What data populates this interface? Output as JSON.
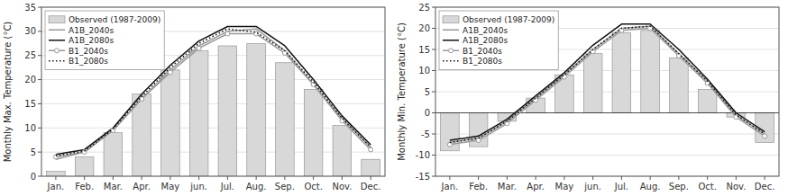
{
  "chart_data": [
    {
      "type": "bar",
      "y_label": "Monthly Max. Temperature (°C)",
      "categories": [
        "Jan.",
        "Feb.",
        "Mar.",
        "Apr.",
        "May",
        "jun.",
        "Jul.",
        "Aug.",
        "Sep.",
        "Oct.",
        "Nov.",
        "Dec."
      ],
      "series": [
        {
          "name": "Observed (1987-2009)",
          "type": "bar",
          "color": "#d8d8d8",
          "values": [
            1,
            4,
            9,
            17,
            22,
            26,
            27,
            27.5,
            23.5,
            18,
            10.5,
            3.5
          ]
        },
        {
          "name": "A1B_2040s",
          "type": "line",
          "color": "#999999",
          "line_style": "solid",
          "values": [
            3.5,
            5,
            9.5,
            16,
            22,
            27,
            30,
            30.5,
            26,
            19,
            12,
            6
          ]
        },
        {
          "name": "A1B_2080s",
          "type": "line",
          "color": "#111111",
          "line_style": "solid",
          "values": [
            4.5,
            5.5,
            10,
            17,
            23,
            28,
            31,
            31,
            27,
            20,
            12.5,
            6.5
          ]
        },
        {
          "name": "B1_2040s",
          "type": "line",
          "color": "#999999",
          "line_style": "solid",
          "marker": "circle",
          "values": [
            4.0,
            5.0,
            9.5,
            16,
            21.5,
            26.5,
            29.5,
            29.5,
            25.5,
            19,
            11.5,
            5.5
          ]
        },
        {
          "name": "B1_2080s",
          "type": "line",
          "color": "#111111",
          "line_style": "dotted",
          "values": [
            4.2,
            5.2,
            9.8,
            16.5,
            22.5,
            27.5,
            30.5,
            29.8,
            26,
            19.5,
            12,
            6
          ]
        }
      ],
      "ylim": [
        0,
        35
      ],
      "yticks": [
        0,
        5,
        10,
        15,
        20,
        25,
        30,
        35
      ],
      "grid": true,
      "legend": "upper left"
    },
    {
      "type": "bar",
      "y_label": "Monthly Min. Temperature (°C)",
      "categories": [
        "Jan.",
        "Feb.",
        "Mar.",
        "Apr.",
        "May",
        "jun.",
        "Jul.",
        "Aug.",
        "Sep.",
        "Oct.",
        "Nov.",
        "Dec."
      ],
      "series": [
        {
          "name": "Observed (1987-2009)",
          "type": "bar",
          "color": "#d8d8d8",
          "values": [
            -9,
            -8,
            -2,
            3.5,
            9,
            14,
            19,
            19.5,
            13,
            5.5,
            -1,
            -7
          ]
        },
        {
          "name": "A1B_2040s",
          "type": "line",
          "color": "#999999",
          "line_style": "solid",
          "values": [
            -7,
            -6,
            -2,
            3.5,
            9,
            15,
            20,
            20.5,
            14,
            7.5,
            -0.5,
            -5
          ]
        },
        {
          "name": "A1B_2080s",
          "type": "line",
          "color": "#111111",
          "line_style": "solid",
          "values": [
            -6.5,
            -5.5,
            -1.5,
            4,
            9.5,
            16,
            21,
            21,
            15,
            8,
            0,
            -4.5
          ]
        },
        {
          "name": "B1_2040s",
          "type": "line",
          "color": "#999999",
          "line_style": "solid",
          "marker": "circle",
          "values": [
            -7.5,
            -6.5,
            -2.5,
            3,
            8.5,
            14.5,
            19.5,
            20,
            13.5,
            7,
            -1,
            -5.5
          ]
        },
        {
          "name": "B1_2080s",
          "type": "line",
          "color": "#111111",
          "line_style": "dotted",
          "values": [
            -7.0,
            -6.0,
            -2.0,
            3.5,
            9,
            15,
            20,
            20.5,
            14,
            7.5,
            -0.5,
            -5
          ]
        }
      ],
      "ylim": [
        -15,
        25
      ],
      "yticks": [
        -15,
        -10,
        -5,
        0,
        5,
        10,
        15,
        20,
        25
      ],
      "grid": true,
      "legend": "upper left"
    }
  ]
}
